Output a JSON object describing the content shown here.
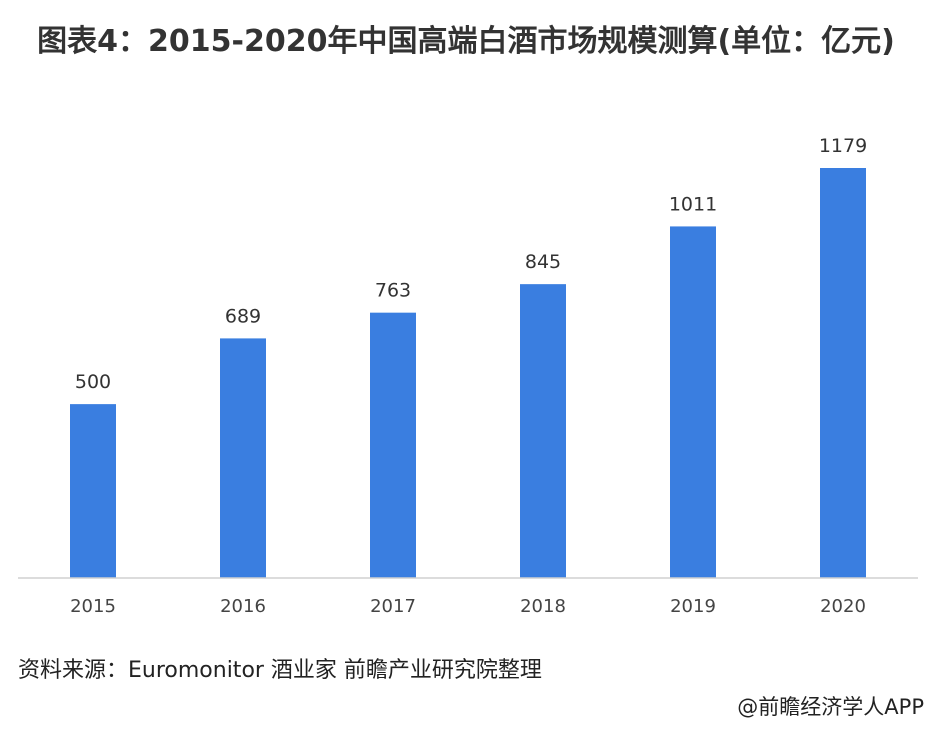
{
  "chart_data": {
    "type": "bar",
    "title": "图表4：2015-2020年中国高端白酒市场规模测算(单位：亿元)",
    "categories": [
      "2015",
      "2016",
      "2017",
      "2018",
      "2019",
      "2020"
    ],
    "values": [
      500,
      689,
      763,
      845,
      1011,
      1179
    ],
    "data_labels": [
      "500",
      "689",
      "763",
      "845",
      "1011",
      "1179"
    ],
    "xlabel": "",
    "ylabel": "",
    "ylim": [
      0,
      1179
    ],
    "grid": false,
    "bar_color": "#3a7ee0"
  },
  "footer": {
    "source": "资料来源：Euromonitor 酒业家 前瞻产业研究院整理",
    "credit": "@前瞻经济学人APP"
  }
}
